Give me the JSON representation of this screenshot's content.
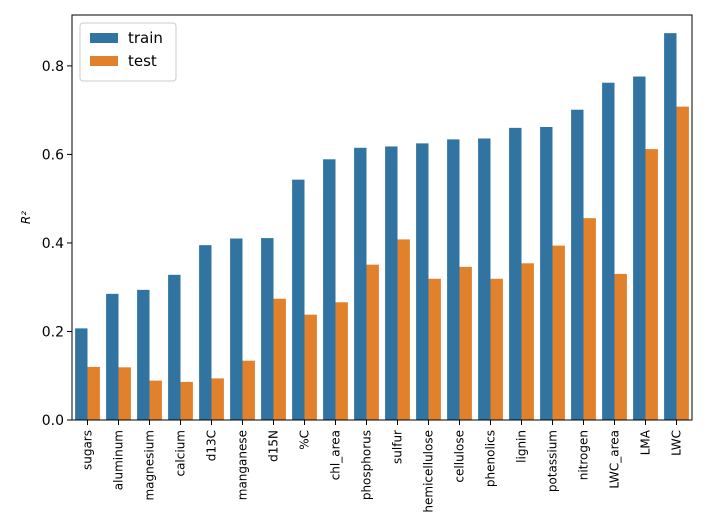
{
  "chart_data": {
    "type": "bar",
    "ylabel": "R²",
    "ylim": [
      0,
      0.915
    ],
    "yticks": [
      0.0,
      0.2,
      0.4,
      0.6,
      0.8
    ],
    "legend_position": "top-left",
    "categories": [
      "sugars",
      "aluminum",
      "magnesium",
      "calcium",
      "d13C",
      "manganese",
      "d15N",
      "%C",
      "chl_area",
      "phosphorus",
      "sulfur",
      "hemicellulose",
      "cellulose",
      "phenolics",
      "lignin",
      "potassium",
      "nitrogen",
      "LWC_area",
      "LMA",
      "LWC"
    ],
    "series": [
      {
        "name": "train",
        "color": "#3274a1",
        "values": [
          0.207,
          0.285,
          0.294,
          0.328,
          0.395,
          0.41,
          0.411,
          0.543,
          0.589,
          0.615,
          0.618,
          0.625,
          0.634,
          0.636,
          0.66,
          0.662,
          0.701,
          0.762,
          0.776,
          0.874
        ]
      },
      {
        "name": "test",
        "color": "#e1812c",
        "values": [
          0.12,
          0.119,
          0.089,
          0.086,
          0.094,
          0.134,
          0.274,
          0.238,
          0.266,
          0.351,
          0.408,
          0.319,
          0.346,
          0.319,
          0.354,
          0.394,
          0.456,
          0.33,
          0.612,
          0.708
        ]
      }
    ]
  }
}
